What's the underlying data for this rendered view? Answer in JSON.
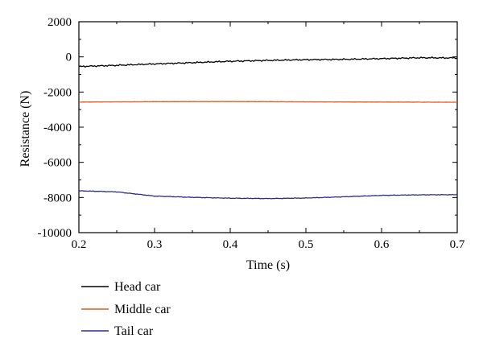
{
  "chart_data": {
    "type": "line",
    "title": "",
    "xlabel": "Time (s)",
    "ylabel": "Resistance (N)",
    "xlim": [
      0.2,
      0.7
    ],
    "ylim": [
      -10000,
      2000
    ],
    "xticks": [
      0.2,
      0.3,
      0.4,
      0.5,
      0.6,
      0.7
    ],
    "yticks": [
      2000,
      0,
      -2000,
      -4000,
      -6000,
      -8000,
      -10000
    ],
    "xtick_labels": [
      "0.2",
      "0.3",
      "0.4",
      "0.5",
      "0.6",
      "0.7"
    ],
    "ytick_labels": [
      "2000",
      "0",
      "-2000",
      "-4000",
      "-6000",
      "-8000",
      "-10000"
    ],
    "grid": false,
    "legend_position": "below",
    "series": [
      {
        "name": "Head car",
        "color": "#000000",
        "x": [
          0.2,
          0.25,
          0.3,
          0.35,
          0.4,
          0.45,
          0.5,
          0.55,
          0.6,
          0.65,
          0.7
        ],
        "y": [
          -550,
          -480,
          -400,
          -330,
          -250,
          -200,
          -160,
          -140,
          -100,
          -50,
          -60
        ]
      },
      {
        "name": "Middle car",
        "color": "#e5581c",
        "x": [
          0.2,
          0.3,
          0.4,
          0.5,
          0.6,
          0.7
        ],
        "y": [
          -2570,
          -2550,
          -2540,
          -2560,
          -2570,
          -2580
        ]
      },
      {
        "name": "Tail car",
        "color": "#2b2b8f",
        "x": [
          0.2,
          0.25,
          0.3,
          0.35,
          0.4,
          0.45,
          0.5,
          0.55,
          0.6,
          0.65,
          0.7
        ],
        "y": [
          -7620,
          -7680,
          -7920,
          -7990,
          -8040,
          -8060,
          -8030,
          -7960,
          -7880,
          -7850,
          -7840
        ]
      }
    ]
  }
}
